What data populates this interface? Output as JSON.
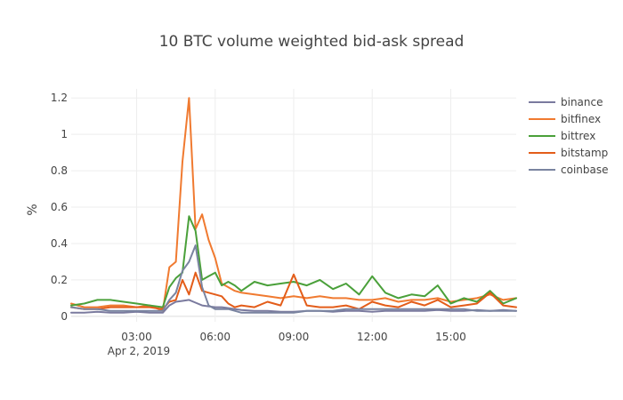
{
  "chart_data": {
    "type": "line",
    "title": "10 BTC volume weighted bid-ask spread",
    "ylabel": "%",
    "xlabel": "",
    "date_label": "Apr 2, 2019",
    "x_ticks": [
      {
        "hour": 3,
        "label": "03:00"
      },
      {
        "hour": 6,
        "label": "06:00"
      },
      {
        "hour": 9,
        "label": "09:00"
      },
      {
        "hour": 12,
        "label": "12:00"
      },
      {
        "hour": 15,
        "label": "15:00"
      }
    ],
    "y_ticks": [
      {
        "value": 0,
        "label": "0"
      },
      {
        "value": 0.2,
        "label": "0.2"
      },
      {
        "value": 0.4,
        "label": "0.4"
      },
      {
        "value": 0.6,
        "label": "0.6"
      },
      {
        "value": 0.8,
        "label": "0.8"
      },
      {
        "value": 1.0,
        "label": "1"
      },
      {
        "value": 1.2,
        "label": "1.2"
      }
    ],
    "xlim": [
      0.5,
      17.5
    ],
    "ylim": [
      -0.03,
      1.25
    ],
    "grid": true,
    "legend_position": "right",
    "x_hours": [
      0.5,
      1.0,
      1.5,
      2.0,
      2.5,
      3.0,
      3.5,
      4.0,
      4.25,
      4.5,
      4.75,
      5.0,
      5.25,
      5.5,
      5.75,
      6.0,
      6.25,
      6.5,
      6.75,
      7.0,
      7.5,
      8.0,
      8.5,
      9.0,
      9.5,
      10.0,
      10.5,
      11.0,
      11.5,
      12.0,
      12.5,
      13.0,
      13.5,
      14.0,
      14.5,
      15.0,
      15.5,
      16.0,
      16.5,
      17.0,
      17.5
    ],
    "series": [
      {
        "name": "binance",
        "color": "#7a7a9e",
        "values": [
          0.02,
          0.02,
          0.025,
          0.02,
          0.02,
          0.025,
          0.02,
          0.02,
          0.06,
          0.08,
          0.085,
          0.09,
          0.075,
          0.06,
          0.055,
          0.05,
          0.05,
          0.045,
          0.04,
          0.035,
          0.03,
          0.03,
          0.025,
          0.025,
          0.03,
          0.03,
          0.025,
          0.03,
          0.03,
          0.025,
          0.03,
          0.03,
          0.03,
          0.03,
          0.035,
          0.03,
          0.03,
          0.035,
          0.03,
          0.035,
          0.03
        ]
      },
      {
        "name": "bitfinex",
        "color": "#f07a30",
        "values": [
          0.07,
          0.05,
          0.05,
          0.06,
          0.06,
          0.05,
          0.06,
          0.03,
          0.27,
          0.3,
          0.85,
          1.2,
          0.48,
          0.56,
          0.42,
          0.32,
          0.18,
          0.16,
          0.14,
          0.13,
          0.12,
          0.11,
          0.1,
          0.11,
          0.1,
          0.11,
          0.1,
          0.1,
          0.09,
          0.09,
          0.1,
          0.08,
          0.09,
          0.09,
          0.1,
          0.08,
          0.09,
          0.1,
          0.12,
          0.09,
          0.1
        ]
      },
      {
        "name": "bittrex",
        "color": "#4aa03a",
        "values": [
          0.06,
          0.07,
          0.09,
          0.09,
          0.08,
          0.07,
          0.06,
          0.05,
          0.16,
          0.21,
          0.24,
          0.55,
          0.47,
          0.2,
          0.22,
          0.24,
          0.17,
          0.19,
          0.17,
          0.14,
          0.19,
          0.17,
          0.18,
          0.19,
          0.17,
          0.2,
          0.15,
          0.18,
          0.12,
          0.22,
          0.13,
          0.1,
          0.12,
          0.11,
          0.17,
          0.07,
          0.1,
          0.08,
          0.14,
          0.07,
          0.1
        ]
      },
      {
        "name": "bitstamp",
        "color": "#e35d1a",
        "values": [
          0.05,
          0.04,
          0.04,
          0.05,
          0.05,
          0.05,
          0.05,
          0.04,
          0.08,
          0.09,
          0.2,
          0.12,
          0.24,
          0.14,
          0.13,
          0.12,
          0.11,
          0.07,
          0.05,
          0.06,
          0.05,
          0.08,
          0.06,
          0.23,
          0.06,
          0.05,
          0.05,
          0.06,
          0.04,
          0.08,
          0.06,
          0.05,
          0.08,
          0.06,
          0.09,
          0.05,
          0.06,
          0.07,
          0.13,
          0.06,
          0.05
        ]
      },
      {
        "name": "coinbase",
        "color": "#7a84a0",
        "values": [
          0.05,
          0.04,
          0.04,
          0.03,
          0.03,
          0.03,
          0.03,
          0.03,
          0.09,
          0.13,
          0.25,
          0.3,
          0.39,
          0.16,
          0.06,
          0.04,
          0.04,
          0.04,
          0.03,
          0.02,
          0.02,
          0.02,
          0.02,
          0.02,
          0.03,
          0.03,
          0.03,
          0.04,
          0.04,
          0.04,
          0.04,
          0.04,
          0.04,
          0.04,
          0.04,
          0.04,
          0.04,
          0.03,
          0.03,
          0.03,
          0.03
        ]
      }
    ]
  }
}
